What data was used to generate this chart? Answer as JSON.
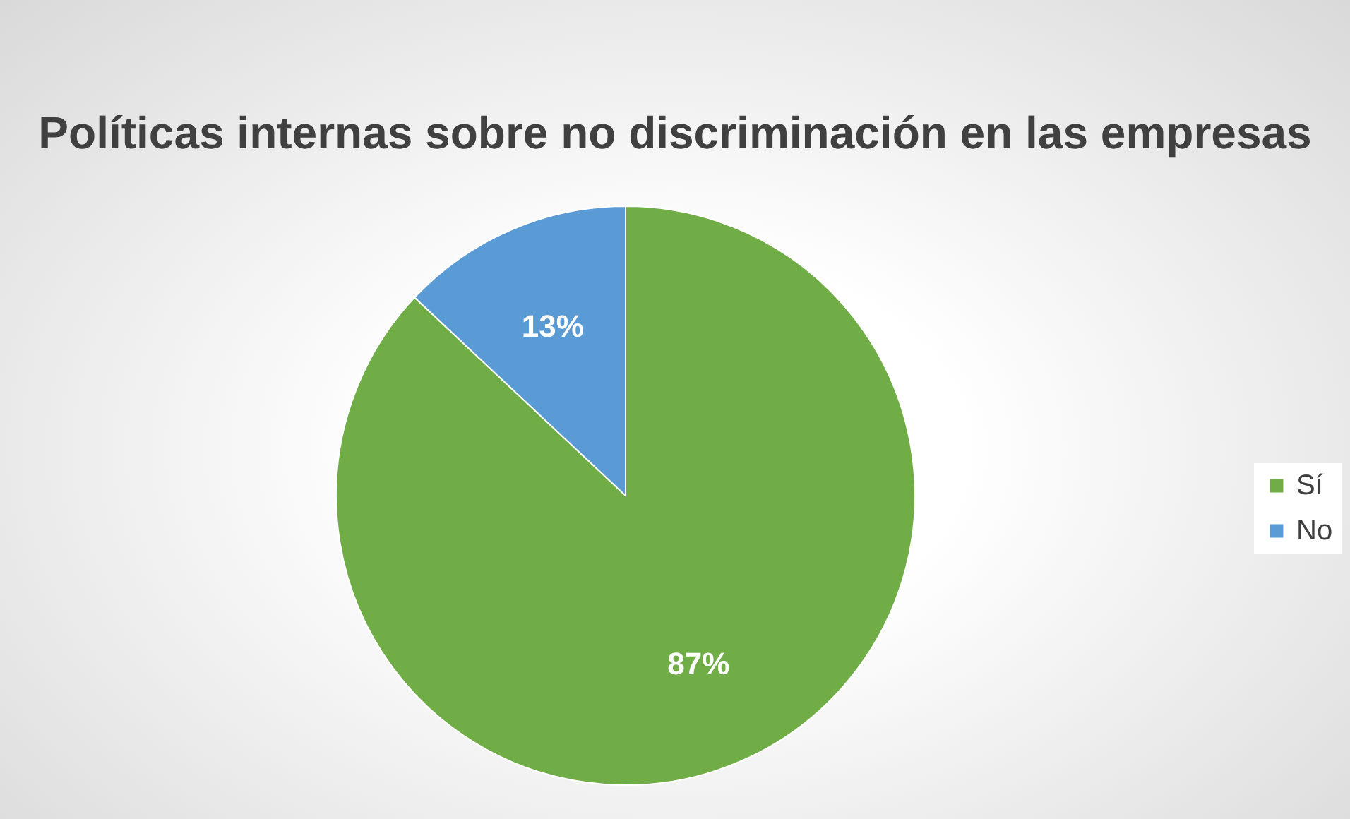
{
  "chart_data": {
    "type": "pie",
    "title": "Políticas internas sobre no\ndiscriminación en las empresas",
    "categories": [
      "Sí",
      "No"
    ],
    "values": [
      87,
      13
    ],
    "colors": [
      "#70ad47",
      "#5b9bd5"
    ],
    "value_labels": [
      "87%",
      "13%"
    ],
    "legend": "right"
  }
}
